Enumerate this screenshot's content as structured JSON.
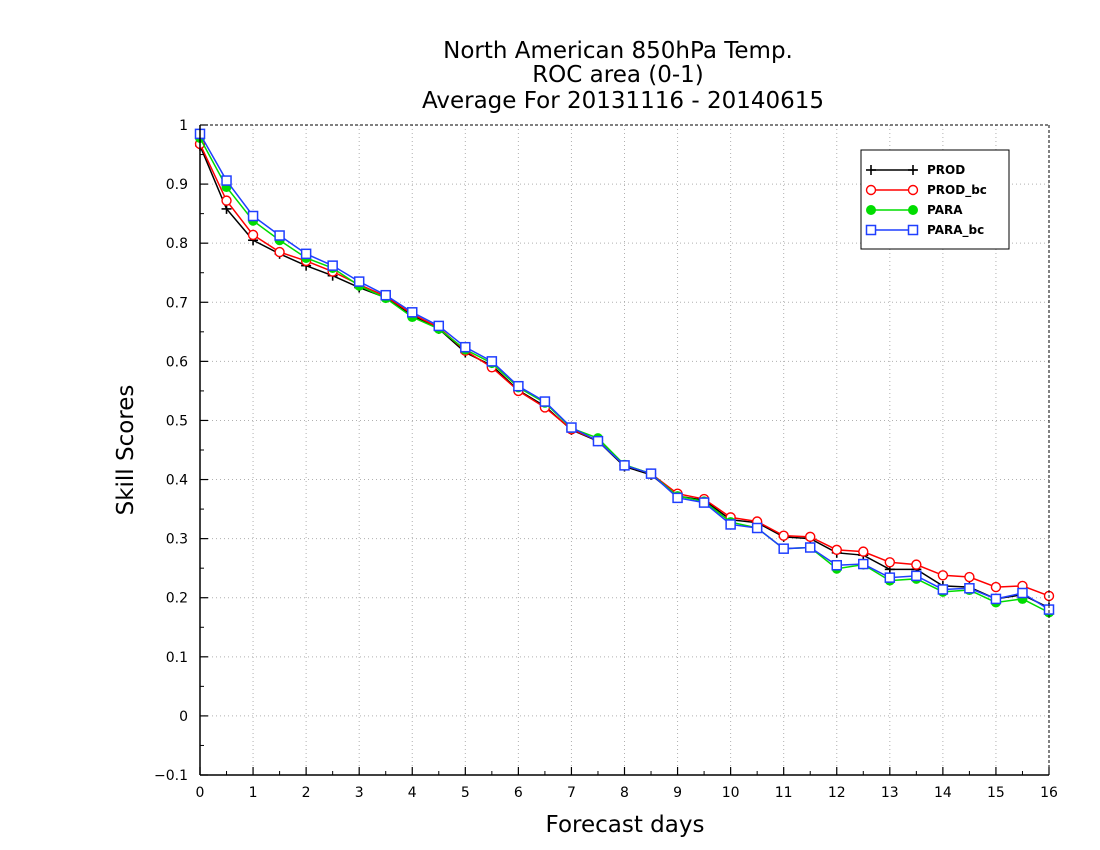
{
  "chart_data": {
    "type": "line",
    "title": [
      "North American 850hPa Temp.",
      "ROC area (0-1)",
      "Average For 20131116 - 20140615"
    ],
    "xlabel": "Forecast days",
    "ylabel": "Skill Scores",
    "xlim": [
      0,
      16
    ],
    "ylim": [
      -0.1,
      1
    ],
    "xticks": [
      0,
      1,
      2,
      3,
      4,
      5,
      6,
      7,
      8,
      9,
      10,
      11,
      12,
      13,
      14,
      15,
      16
    ],
    "xtick_labels": [
      "0",
      "1",
      "2",
      "3",
      "4",
      "5",
      "6",
      "7",
      "8",
      "9",
      "10",
      "11",
      "12",
      "13",
      "14",
      "15",
      "16"
    ],
    "yticks": [
      -0.1,
      0,
      0.1,
      0.2,
      0.3,
      0.4,
      0.5,
      0.6,
      0.7,
      0.8,
      0.9,
      1
    ],
    "ytick_labels": [
      "−0.1",
      "0",
      "0.1",
      "0.2",
      "0.3",
      "0.4",
      "0.5",
      "0.6",
      "0.7",
      "0.8",
      "0.9",
      "1"
    ],
    "grid": true,
    "legend_position": "top-right",
    "x": [
      0,
      0.5,
      1,
      1.5,
      2,
      2.5,
      3,
      3.5,
      4,
      4.5,
      5,
      5.5,
      6,
      6.5,
      7,
      7.5,
      8,
      8.5,
      9,
      9.5,
      10,
      10.5,
      11,
      11.5,
      12,
      12.5,
      13,
      13.5,
      14,
      14.5,
      15,
      15.5,
      16
    ],
    "series": [
      {
        "name": "PROD",
        "color": "#000000",
        "marker": "plus",
        "values": [
          0.965,
          0.858,
          0.805,
          0.782,
          0.762,
          0.745,
          0.725,
          0.708,
          0.678,
          0.655,
          0.615,
          0.593,
          0.551,
          0.524,
          0.484,
          0.465,
          0.422,
          0.408,
          0.372,
          0.365,
          0.332,
          0.327,
          0.303,
          0.3,
          0.276,
          0.272,
          0.248,
          0.248,
          0.22,
          0.218,
          0.198,
          0.205,
          0.183
        ]
      },
      {
        "name": "PROD_bc",
        "color": "#ff0000",
        "marker": "circle-open",
        "values": [
          0.968,
          0.872,
          0.814,
          0.785,
          0.77,
          0.752,
          0.73,
          0.71,
          0.68,
          0.657,
          0.618,
          0.59,
          0.55,
          0.522,
          0.485,
          0.466,
          0.424,
          0.41,
          0.376,
          0.367,
          0.336,
          0.329,
          0.305,
          0.303,
          0.281,
          0.278,
          0.26,
          0.256,
          0.238,
          0.235,
          0.218,
          0.22,
          0.203
        ]
      },
      {
        "name": "PARA",
        "color": "#00dd00",
        "marker": "circle-filled",
        "values": [
          0.978,
          0.895,
          0.838,
          0.805,
          0.775,
          0.758,
          0.728,
          0.707,
          0.675,
          0.655,
          0.62,
          0.597,
          0.556,
          0.53,
          0.487,
          0.47,
          0.425,
          0.41,
          0.372,
          0.363,
          0.328,
          0.318,
          0.283,
          0.285,
          0.249,
          0.256,
          0.229,
          0.232,
          0.21,
          0.213,
          0.192,
          0.198,
          0.175
        ]
      },
      {
        "name": "PARA_bc",
        "color": "#1f3fff",
        "marker": "square-open",
        "values": [
          0.985,
          0.906,
          0.846,
          0.813,
          0.782,
          0.762,
          0.735,
          0.712,
          0.683,
          0.66,
          0.624,
          0.6,
          0.558,
          0.532,
          0.488,
          0.465,
          0.424,
          0.41,
          0.369,
          0.361,
          0.324,
          0.318,
          0.283,
          0.285,
          0.255,
          0.257,
          0.234,
          0.237,
          0.214,
          0.216,
          0.198,
          0.208,
          0.18
        ]
      }
    ]
  }
}
